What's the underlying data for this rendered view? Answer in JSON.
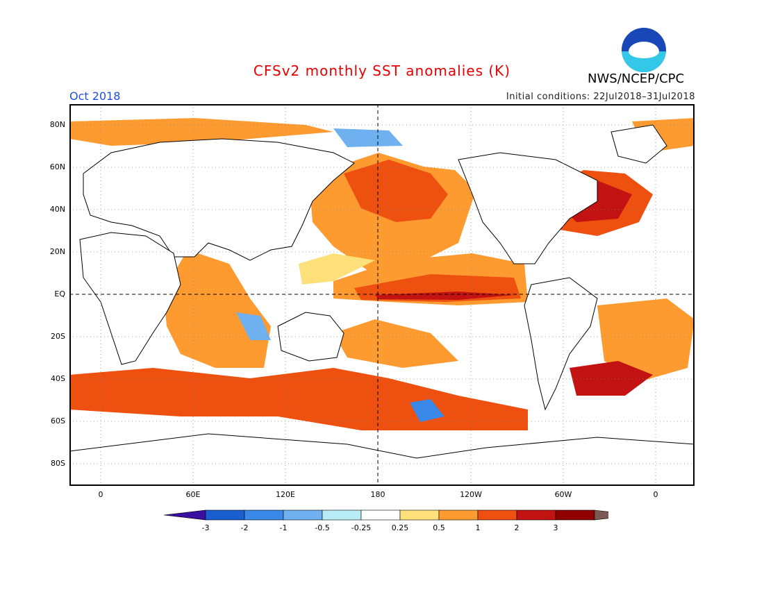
{
  "header": {
    "title": "CFSv2 monthly SST anomalies (K)",
    "agency": "NWS/NCEP/CPC",
    "month": "Oct 2018",
    "initial_conditions": "Initial conditions: 22Jul2018–31Jul2018",
    "logo_text": "NOAA"
  },
  "colors": {
    "title": "#e60000",
    "month": "#1f4fd8",
    "scale": [
      "#3a0fa0",
      "#1a5fd0",
      "#3a88e8",
      "#6fb0f0",
      "#b8ecf4",
      "#ffffff",
      "#fde07a",
      "#fd9a30",
      "#ee5010",
      "#c31212",
      "#8f0000",
      "#7a5a52"
    ]
  },
  "axes": {
    "lat_labels": [
      "80N",
      "60N",
      "40N",
      "20N",
      "EQ",
      "20S",
      "40S",
      "60S",
      "80S"
    ],
    "lon_labels": [
      "0",
      "60E",
      "120E",
      "180",
      "120W",
      "60W",
      "0"
    ]
  },
  "colorbar": {
    "ticks": [
      "-3",
      "-2",
      "-1",
      "-0.5",
      "-0.25",
      "0.25",
      "0.5",
      "1",
      "2",
      "3"
    ]
  }
}
